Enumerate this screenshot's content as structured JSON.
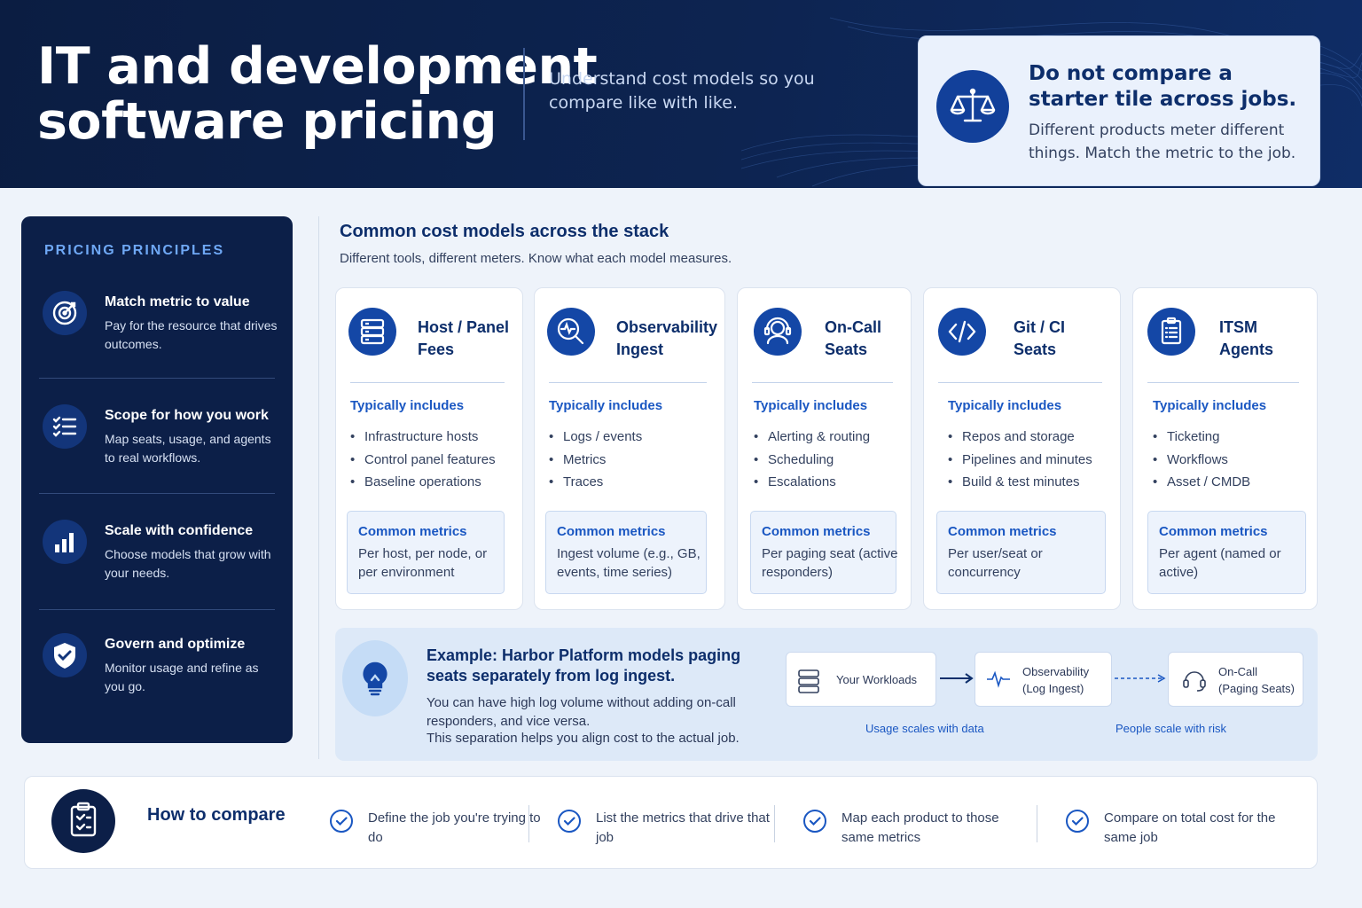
{
  "header": {
    "title_line1": "IT and development",
    "title_line2": "software pricing",
    "subtitle": "Understand cost models so you compare like with like.",
    "callout_title": "Do not compare a starter tile across jobs.",
    "callout_text": "Different products meter different things. Match the metric to the job.",
    "callout_icon": "scales-icon"
  },
  "sidebar": {
    "label": "PRICING PRINCIPLES",
    "items": [
      {
        "icon": "target-icon",
        "title": "Match metric to value",
        "text": "Pay for the resource that drives outcomes."
      },
      {
        "icon": "checklist-icon",
        "title": "Scope for how you work",
        "text": "Map seats, usage, and agents to real workflows."
      },
      {
        "icon": "bar-chart-icon",
        "title": "Scale with confidence",
        "text": "Choose models that grow with your needs."
      },
      {
        "icon": "shield-check-icon",
        "title": "Govern and optimize",
        "text": "Monitor usage and refine as you go."
      }
    ]
  },
  "models": {
    "title": "Common cost models across the stack",
    "subtitle": "Different tools, different meters. Know what each model measures.",
    "includes_label": "Typically includes",
    "metrics_label": "Common metrics",
    "cards": [
      {
        "name1": "Host / Panel",
        "name2": "Fees",
        "icon": "server-icon",
        "items": [
          "Infrastructure hosts",
          "Control panel features",
          "Baseline operations"
        ],
        "metrics": "Per host, per node, or per environment"
      },
      {
        "name1": "Observability",
        "name2": "Ingest",
        "icon": "magnifier-pulse-icon",
        "items": [
          "Logs / events",
          "Metrics",
          "Traces"
        ],
        "metrics": "Ingest volume (e.g., GB, events, time series)"
      },
      {
        "name1": "On-Call",
        "name2": "Seats",
        "icon": "headset-person-icon",
        "items": [
          "Alerting & routing",
          "Scheduling",
          "Escalations"
        ],
        "metrics": "Per paging seat (active responders)"
      },
      {
        "name1": "Git / CI",
        "name2": "Seats",
        "icon": "code-icon",
        "items": [
          "Repos and storage",
          "Pipelines and minutes",
          "Build & test minutes"
        ],
        "metrics": "Per user/seat or concurrency"
      },
      {
        "name1": "ITSM",
        "name2": "Agents",
        "icon": "clipboard-list-icon",
        "items": [
          "Ticketing",
          "Workflows",
          "Asset / CMDB"
        ],
        "metrics": "Per agent (named or active)"
      }
    ]
  },
  "example": {
    "title": "Example: Harbor Platform models paging seats separately from log ingest.",
    "text1": "You can have high log volume without adding on-call responders, and vice versa.",
    "text2": "This separation helps you align cost to the actual job.",
    "flow": {
      "box1": "Your Workloads",
      "box2_line1": "Observability",
      "box2_line2": "(Log Ingest)",
      "box3_line1": "On-Call",
      "box3_line2": "(Paging Seats)",
      "caption1": "Usage scales with data",
      "caption2": "People scale with risk"
    }
  },
  "compare": {
    "title": "How to compare",
    "icon": "clipboard-check-icon",
    "steps": [
      "Define the job you're trying to do",
      "List the metrics that drive that job",
      "Map each product to those same metrics",
      "Compare on total cost for the same job"
    ]
  },
  "colors": {
    "navy": "#0c1f48",
    "accent": "#1447a6",
    "link": "#1a57c2"
  }
}
